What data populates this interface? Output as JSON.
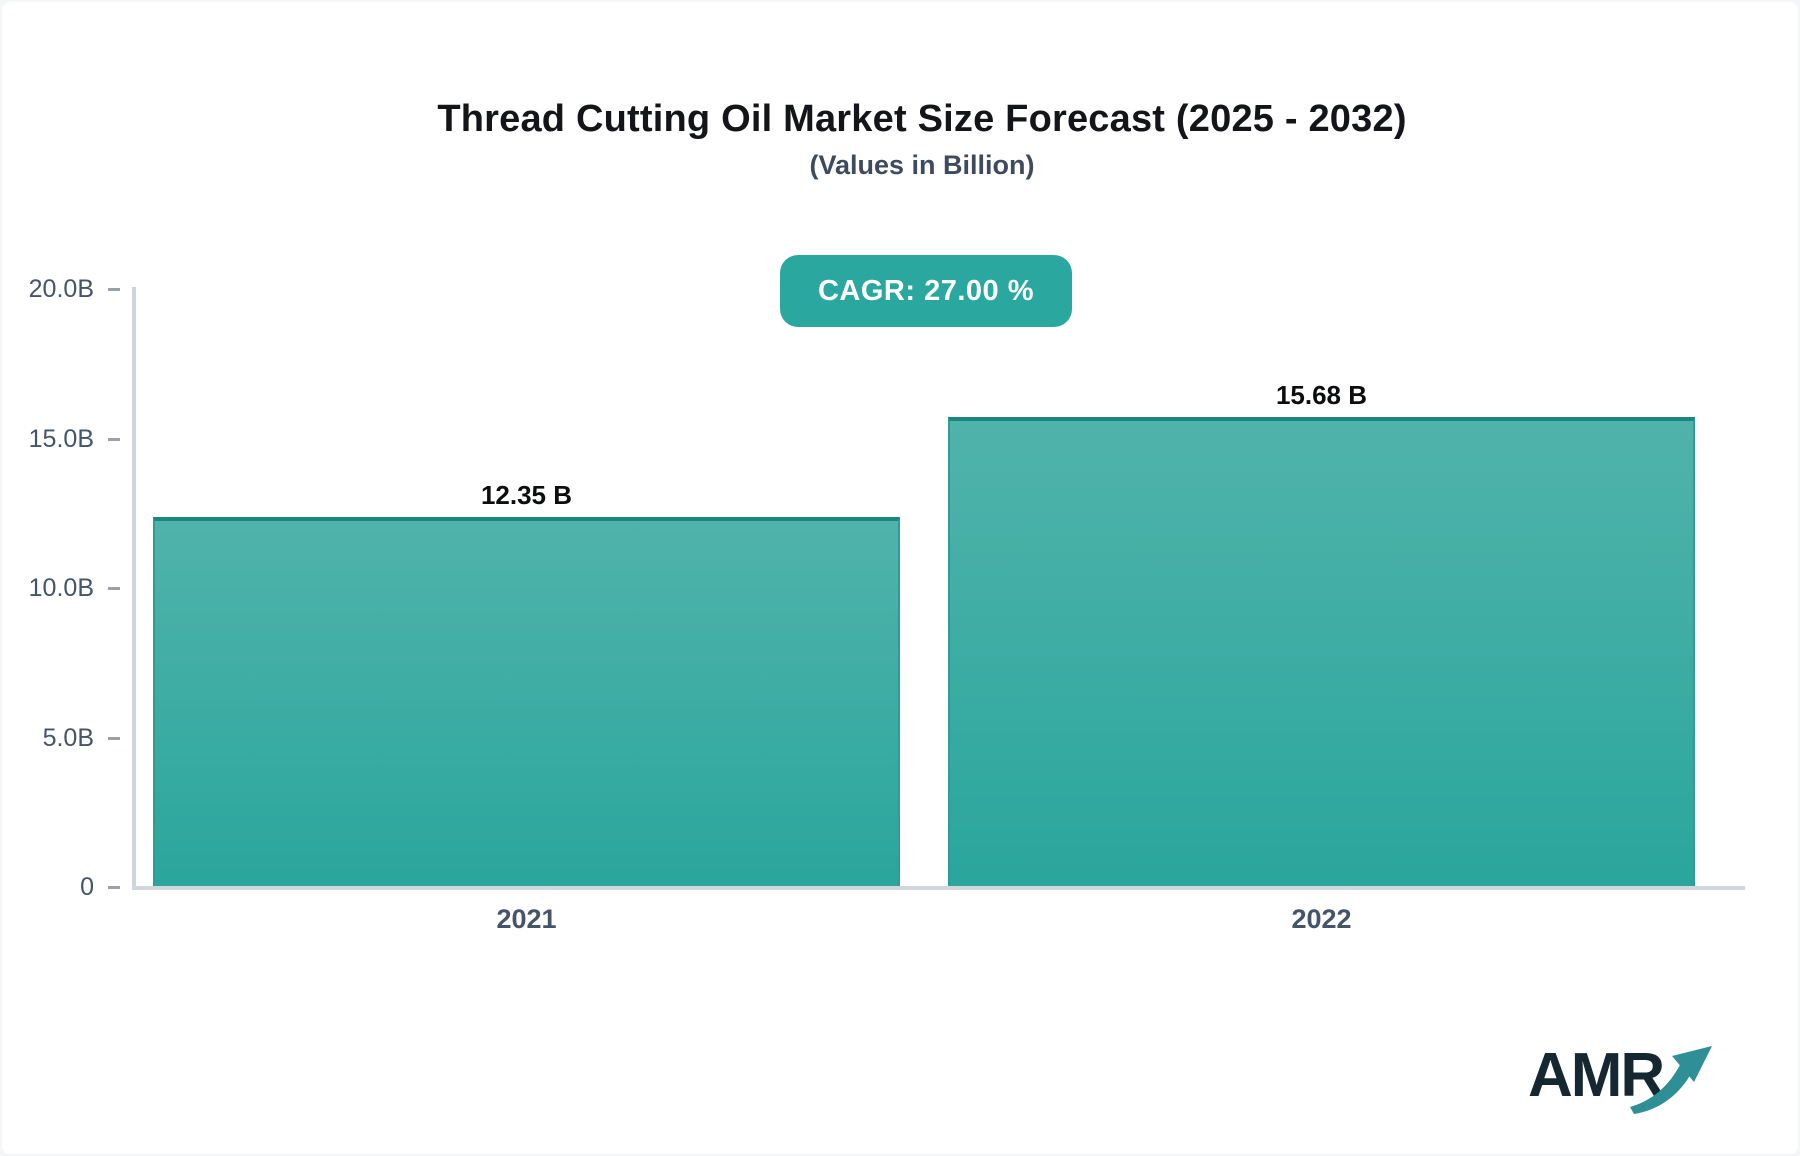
{
  "chart": {
    "title": "Thread Cutting Oil Market Size Forecast (2025 - 2032)",
    "subtitle": "(Values in Billion)"
  },
  "badge": {
    "label": "CAGR: 27.00 %",
    "bg_color": "#2aa79f",
    "text_color": "#ffffff"
  },
  "chart_data": {
    "type": "bar",
    "title": "Thread Cutting Oil Market Size Forecast (2025 - 2032)",
    "subtitle": "(Values in Billion)",
    "cagr_percent": "27.00",
    "categories": [
      "2021",
      "2022"
    ],
    "values": [
      12.35,
      15.68
    ],
    "value_labels": [
      "12.35 B",
      "15.68 B"
    ],
    "xlabel": "",
    "ylabel": "",
    "ylim": [
      0,
      20
    ],
    "yticks": [
      {
        "label": "0",
        "value": 0
      },
      {
        "label": "5.0B",
        "value": 5
      },
      {
        "label": "10.0B",
        "value": 10
      },
      {
        "label": "15.0B",
        "value": 15
      },
      {
        "label": "20.0B",
        "value": 20
      }
    ],
    "grid": false,
    "legend": false,
    "bar_color_top": "#50b3ab",
    "bar_color_bottom": "#2aa69c",
    "bar_border_color": "#18877f",
    "axis_color": "#cfd4db",
    "tick_label_color": "#44546a"
  },
  "logo": {
    "text": "AMR",
    "text_color": "#152731",
    "arrow_color": "#2e8f96",
    "arrow_icon": "trend-up-arrow"
  }
}
